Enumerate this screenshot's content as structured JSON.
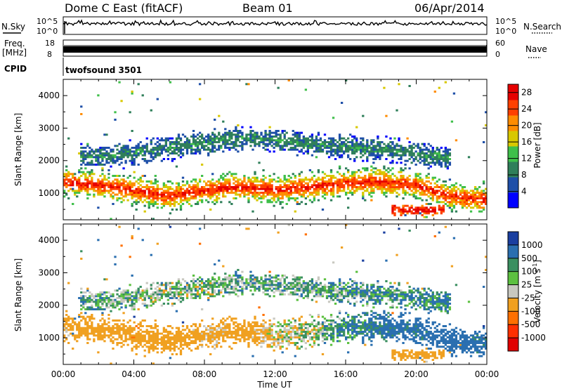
{
  "header": {
    "site": "Dome C East (fitACF)",
    "beam": "Beam 01",
    "date": "06/Apr/2014"
  },
  "strips": {
    "nsky": {
      "label": "N.Sky",
      "top": "10^5",
      "bottom": "10^0"
    },
    "nsearch": {
      "label": "N.Search",
      "top": "10^5",
      "bottom": "10^0"
    },
    "freq": {
      "label": "Freq.",
      "unit": "[MHz]",
      "top": "18",
      "bottom": "8"
    },
    "nave": {
      "label": "Nave",
      "top": "60",
      "bottom": "0"
    },
    "cpid": {
      "label": "CPID",
      "program": "twofsound 3501"
    }
  },
  "colors": {
    "power_scale": [
      "#0000ff",
      "#1e4fa8",
      "#2f7f5a",
      "#3fbf4a",
      "#d8c800",
      "#ff8c00",
      "#ff4000",
      "#e60000"
    ],
    "velocity_scale": [
      "#1a3fa0",
      "#2a6fb0",
      "#3a8f60",
      "#5cc040",
      "#c8c8c0",
      "#f0a020",
      "#ff7000",
      "#ff3000",
      "#e00000"
    ],
    "nodata": "#ffffff"
  },
  "chart_data": [
    {
      "type": "heatmap",
      "panel": "power",
      "xlabel": "Time UT",
      "ylabel": "Slant Range [km]",
      "x_ticks": [
        "00:00",
        "04:00",
        "08:00",
        "12:00",
        "16:00",
        "20:00",
        "00:00"
      ],
      "xlim_hours": [
        0,
        24
      ],
      "y_ticks": [
        1000,
        2000,
        3000,
        4000
      ],
      "ylim": [
        180,
        4500
      ],
      "colorbar_label": "Power [dB]",
      "colorbar_ticks": [
        4,
        8,
        12,
        16,
        20,
        24,
        28
      ],
      "colorbar_range": [
        0,
        30
      ],
      "bands": [
        {
          "name": "main echo",
          "start_h": 0,
          "end_h": 24,
          "center_km": [
            1350,
            1250,
            1100,
            900,
            1100,
            1200,
            1100,
            1200,
            1300,
            1350,
            1250,
            900,
            800
          ],
          "halfwidth_km": 320,
          "value_db": 27
        },
        {
          "name": "upper echo",
          "start_h": 1,
          "end_h": 22,
          "center_km": [
            2100,
            2150,
            2300,
            2450,
            2600,
            2700,
            2600,
            2500,
            2400,
            2350,
            2200,
            2100
          ],
          "halfwidth_km": 260,
          "value_db": 10
        },
        {
          "name": "late near echo",
          "start_h": 18.6,
          "end_h": 21.6,
          "center_km": [
            480,
            480,
            480
          ],
          "halfwidth_km": 120,
          "value_db": 28
        }
      ]
    },
    {
      "type": "heatmap",
      "panel": "velocity",
      "xlabel": "Time UT",
      "ylabel": "Slant Range [km]",
      "x_ticks": [
        "00:00",
        "04:00",
        "08:00",
        "12:00",
        "16:00",
        "20:00",
        "00:00"
      ],
      "xlim_hours": [
        0,
        24
      ],
      "y_ticks": [
        1000,
        2000,
        3000,
        4000
      ],
      "ylim": [
        180,
        4500
      ],
      "colorbar_label": "Velocity [m s-1]",
      "colorbar_ticks": [
        "1000",
        "500",
        "100",
        "25",
        "-25",
        "-100",
        "-500",
        "-1000"
      ],
      "bands": [
        {
          "name": "main echo",
          "start_h": 0,
          "end_h": 24,
          "velocity_trend": [
            -200,
            -300,
            -400,
            -350,
            -150,
            -250,
            -100,
            -50,
            100,
            150,
            200,
            250,
            200
          ]
        },
        {
          "name": "upper echo",
          "start_h": 1,
          "end_h": 22,
          "velocity_trend": [
            50,
            20,
            0,
            -10,
            0,
            30,
            40,
            20,
            60,
            80,
            100,
            120
          ]
        },
        {
          "name": "late near echo",
          "start_h": 18.6,
          "end_h": 21.6,
          "velocity_trend": [
            -300,
            -350,
            -320
          ]
        }
      ]
    }
  ]
}
